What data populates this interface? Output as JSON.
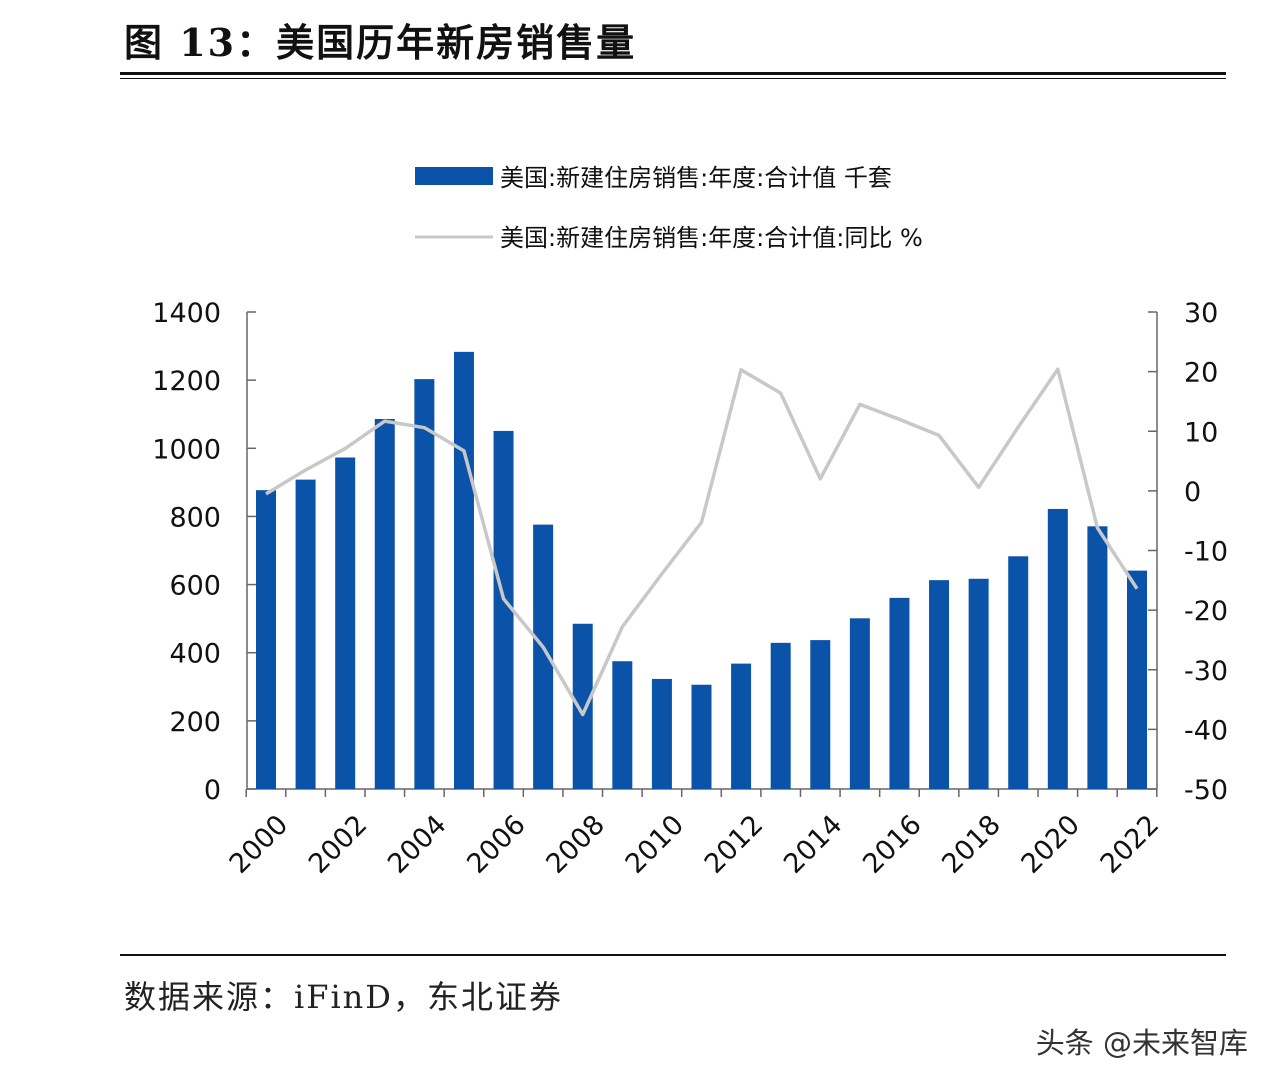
{
  "title": "图 13：美国历年新房销售量",
  "source": "数据来源：iFinD，东北证券",
  "watermark": "头条 @未来智库",
  "chart_data": {
    "type": "bar+line",
    "categories": [
      2000,
      2001,
      2002,
      2003,
      2004,
      2005,
      2006,
      2007,
      2008,
      2009,
      2010,
      2011,
      2012,
      2013,
      2014,
      2015,
      2016,
      2017,
      2018,
      2019,
      2020,
      2021,
      2022
    ],
    "x_tick_labels": [
      "2000",
      "2002",
      "2004",
      "2006",
      "2008",
      "2010",
      "2012",
      "2014",
      "2016",
      "2018",
      "2020",
      "2022"
    ],
    "series": [
      {
        "name": "美国:新建住房销售:年度:合计值  千套",
        "type": "bar",
        "axis": "left",
        "color": "#0b53a8",
        "values": [
          877,
          908,
          973,
          1086,
          1203,
          1283,
          1051,
          776,
          485,
          375,
          323,
          306,
          368,
          429,
          437,
          501,
          561,
          613,
          617,
          683,
          822,
          771,
          641
        ]
      },
      {
        "name": "美国:新建住房销售:年度:合计值:同比  %",
        "type": "line",
        "axis": "right",
        "color": "#c8c8c8",
        "values": [
          -0.5,
          3.5,
          7.1,
          11.7,
          10.6,
          6.7,
          -18.1,
          -26.2,
          -37.5,
          -22.8,
          -13.9,
          -5.3,
          20.3,
          16.4,
          2.0,
          14.5,
          12.0,
          9.3,
          0.6,
          10.7,
          20.4,
          -6.2,
          -16.4
        ]
      }
    ],
    "left_axis": {
      "ylim": [
        0,
        1400
      ],
      "ticks": [
        "0",
        "200",
        "400",
        "600",
        "800",
        "1000",
        "1200",
        "1400"
      ]
    },
    "right_axis": {
      "ylim": [
        -50,
        30
      ],
      "ticks": [
        "-50",
        "-40",
        "-30",
        "-20",
        "-10",
        "0",
        "10",
        "20",
        "30"
      ]
    },
    "legend_position": "top",
    "grid": false
  }
}
